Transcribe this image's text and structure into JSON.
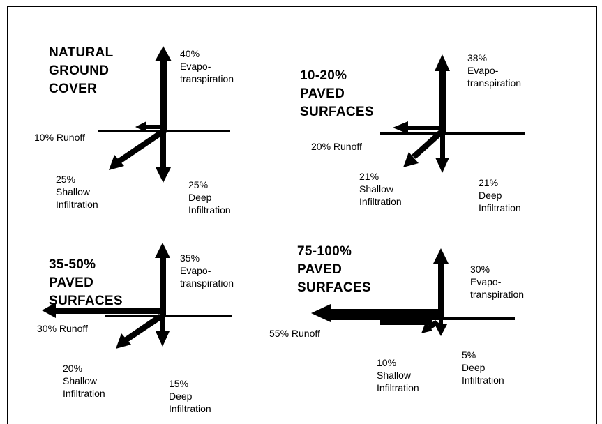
{
  "colors": {
    "background": "#ffffff",
    "ink": "#000000"
  },
  "panels": [
    {
      "title": "NATURAL\nGROUND\nCOVER",
      "evapotranspiration": "40%\nEvapo-\ntranspiration",
      "runoff": "10% Runoff",
      "shallow": "25%\nShallow\nInfiltration",
      "deep": "25%\nDeep\nInfiltration"
    },
    {
      "title": "10-20%\nPAVED\nSURFACES",
      "evapotranspiration": "38%\nEvapo-\ntranspiration",
      "runoff": "20% Runoff",
      "shallow": "21%\nShallow\nInfiltration",
      "deep": "21%\nDeep\nInfiltration"
    },
    {
      "title": "35-50%\nPAVED\nSURFACES",
      "evapotranspiration": "35%\nEvapo-\ntranspiration",
      "runoff": "30% Runoff",
      "shallow": "20%\nShallow\nInfiltration",
      "deep": "15%\nDeep\nInfiltration"
    },
    {
      "title": "75-100%\nPAVED\nSURFACES",
      "evapotranspiration": "30%\nEvapo-\ntranspiration",
      "runoff": "55% Runoff",
      "shallow": "10%\nShallow\nInfiltration",
      "deep": "5%\nDeep\nInfiltration"
    }
  ]
}
